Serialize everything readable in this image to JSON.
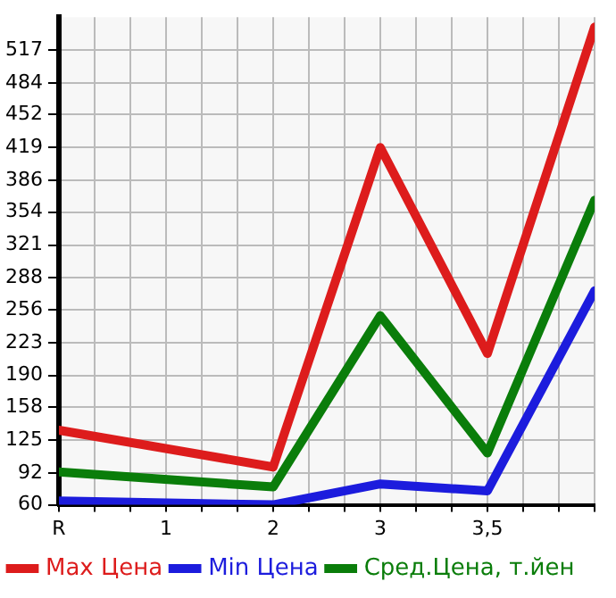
{
  "chart_data": {
    "type": "line",
    "categories": [
      "R",
      "1",
      "2",
      "3",
      "3,5",
      null
    ],
    "series": [
      {
        "name": "Max Цена",
        "color": "#dd1c1c",
        "values": [
          135,
          null,
          98,
          419,
          212,
          540
        ]
      },
      {
        "name": "Min Цена",
        "color": "#1c1cdd",
        "values": [
          64,
          null,
          60,
          81,
          74,
          275
        ]
      },
      {
        "name": "Сред.Цена, т.йен",
        "color": "#0a7d0a",
        "values": [
          93,
          null,
          78,
          250,
          112,
          366
        ]
      }
    ],
    "ylim": [
      60,
      550
    ],
    "yticks": [
      60,
      92,
      125,
      158,
      190,
      223,
      256,
      288,
      321,
      354,
      386,
      419,
      452,
      484,
      517
    ],
    "grid": true,
    "legend": "bottom",
    "marker": "none",
    "line_style": "solid"
  }
}
